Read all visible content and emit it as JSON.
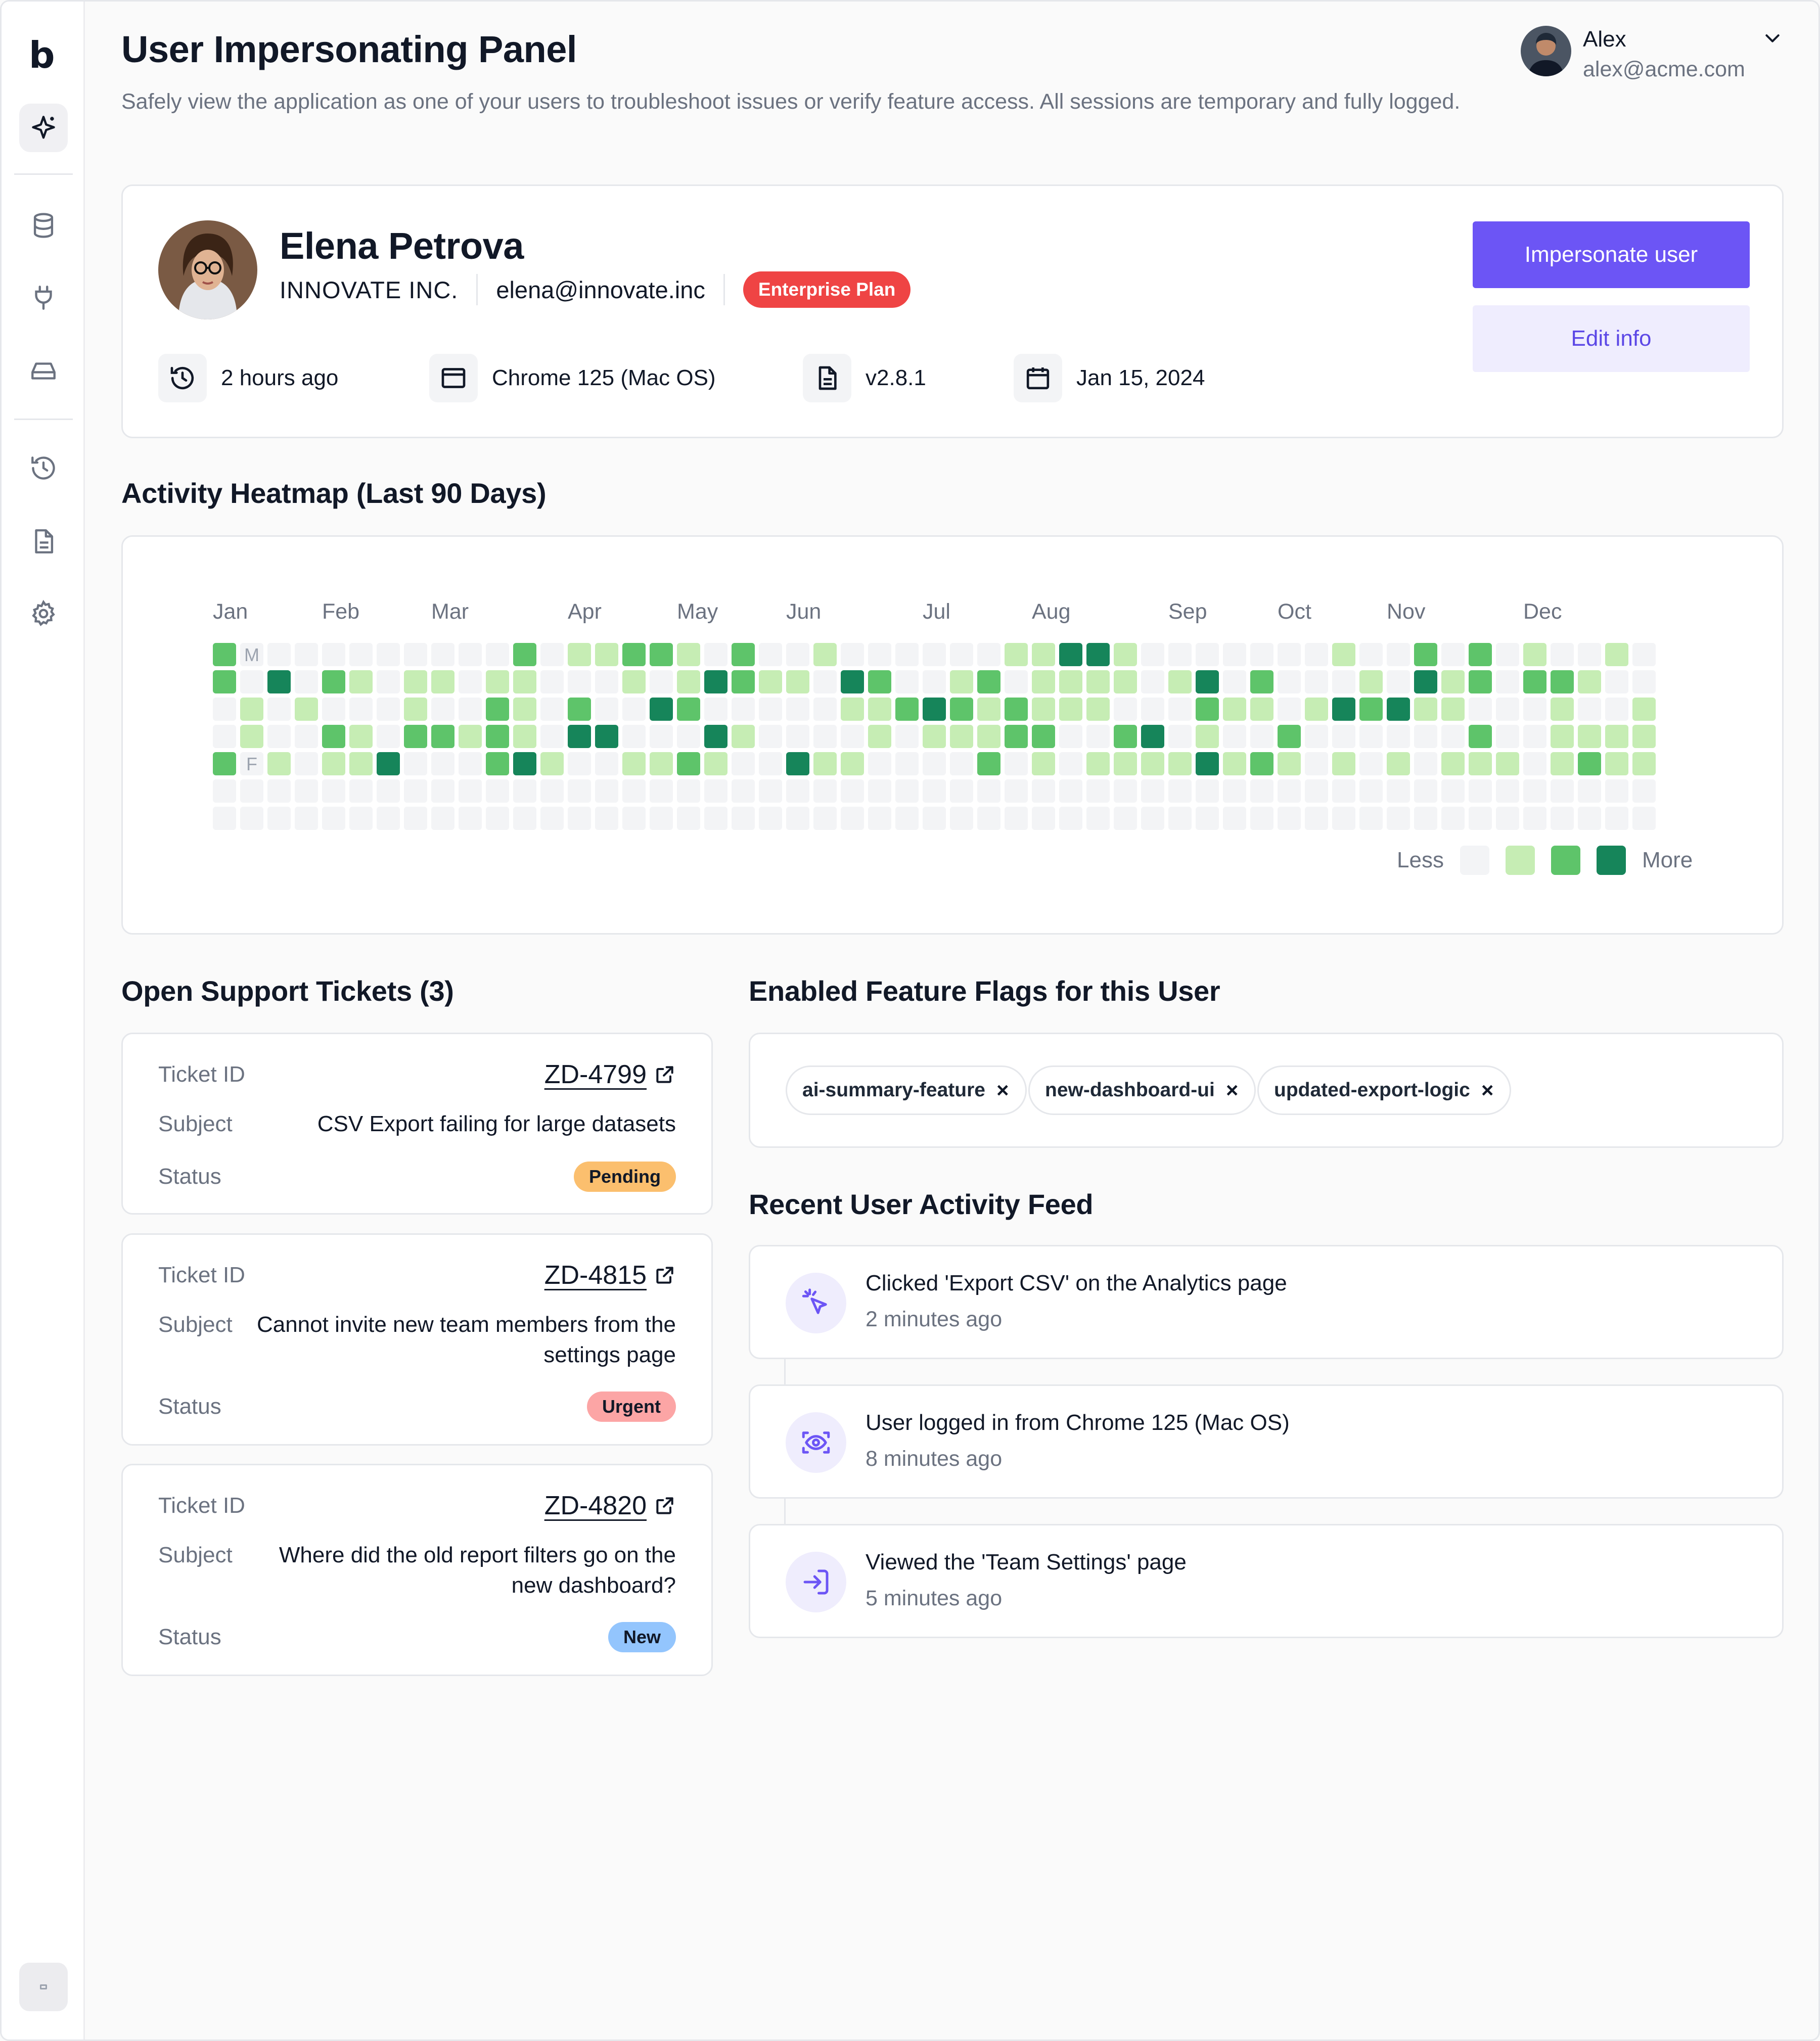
{
  "sidebar": {
    "logo": "b",
    "items": [
      {
        "icon": "sparkle-icon",
        "active": true
      },
      {
        "icon": "database-icon"
      },
      {
        "icon": "plug-icon"
      },
      {
        "icon": "drive-icon"
      },
      {
        "icon": "history-icon"
      },
      {
        "icon": "document-icon"
      },
      {
        "icon": "gear-icon"
      }
    ]
  },
  "header": {
    "title": "User Impersonating Panel",
    "subtitle": "Safely view the application as one of your users to troubleshoot issues or verify feature access. All sessions are temporary and fully logged."
  },
  "current_user": {
    "name": "Alex",
    "email": "alex@acme.com"
  },
  "profile": {
    "name": "Elena Petrova",
    "company": "INNOVATE INC.",
    "email": "elena@innovate.inc",
    "plan": "Enterprise Plan",
    "stats": [
      {
        "icon": "history-icon",
        "text": "2 hours ago"
      },
      {
        "icon": "browser-icon",
        "text": "Chrome 125 (Mac OS)"
      },
      {
        "icon": "file-icon",
        "text": "v2.8.1"
      },
      {
        "icon": "calendar-icon",
        "text": "Jan 15, 2024"
      }
    ],
    "impersonate_label": "Impersonate user",
    "edit_label": "Edit info"
  },
  "heatmap": {
    "title": "Activity Heatmap (Last 90 Days)",
    "months": [
      "Jan",
      "Feb",
      "Mar",
      "Apr",
      "May",
      "Jun",
      "Jul",
      "Aug",
      "Sep",
      "Oct",
      "Nov",
      "Dec"
    ],
    "day_labels": [
      "M",
      "F"
    ],
    "legend_less": "Less",
    "legend_more": "More",
    "colors": [
      "#f3f4f6",
      "#c6edb4",
      "#5ec46a",
      "#16855a"
    ]
  },
  "tickets": {
    "title": "Open Support Tickets (3)",
    "label_id": "Ticket ID",
    "label_subject": "Subject",
    "label_status": "Status",
    "items": [
      {
        "id": "ZD-4799",
        "subject": "CSV Export failing for large datasets",
        "status": "Pending",
        "status_bg": "#fbbf6e",
        "status_fg": "#111827"
      },
      {
        "id": "ZD-4815",
        "subject": "Cannot invite new team members from the settings page",
        "status": "Urgent",
        "status_bg": "#fca5a5",
        "status_fg": "#111827"
      },
      {
        "id": "ZD-4820",
        "subject": "Where did the old report filters go on the new dashboard?",
        "status": "New",
        "status_bg": "#93c5fd",
        "status_fg": "#111827"
      }
    ]
  },
  "flags": {
    "title": "Enabled Feature Flags for this User",
    "items": [
      "ai-summary-feature",
      "new-dashboard-ui",
      "updated-export-logic"
    ]
  },
  "feed": {
    "title": "Recent User Activity Feed",
    "items": [
      {
        "icon": "cursor-click-icon",
        "text": "Clicked 'Export CSV' on the Analytics page",
        "time": "2 minutes ago"
      },
      {
        "icon": "eye-scan-icon",
        "text": "User logged in from Chrome 125 (Mac OS)",
        "time": "8 minutes ago"
      },
      {
        "icon": "login-icon",
        "text": "Viewed the 'Team Settings' page",
        "time": "5 minutes ago"
      }
    ]
  }
}
